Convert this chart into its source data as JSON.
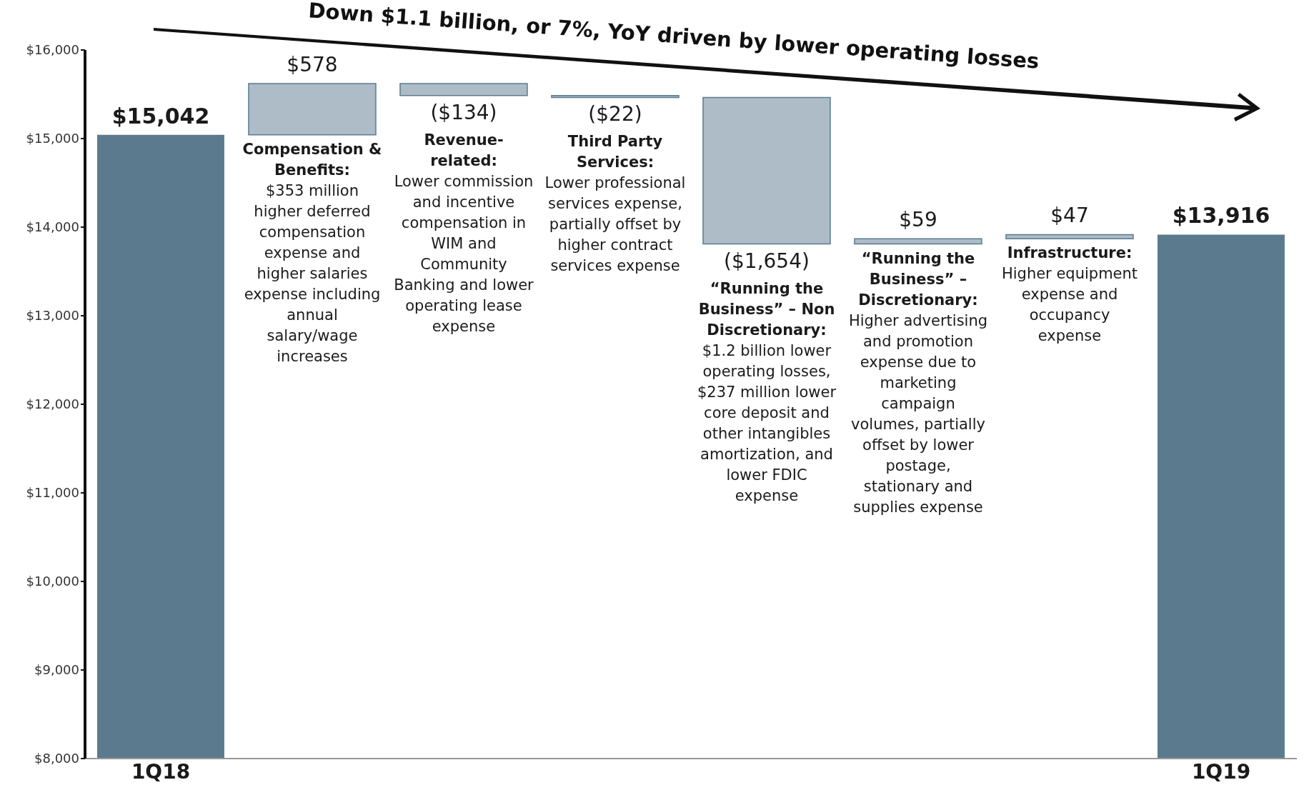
{
  "chart_data": {
    "type": "bar",
    "title": "Down $1.1 billion, or 7%, YoY driven by lower operating losses",
    "categories": [
      "1Q18",
      null,
      null,
      null,
      null,
      null,
      null,
      "1Q19"
    ],
    "values": [
      15042,
      578,
      -134,
      -22,
      -1654,
      59,
      47,
      13916
    ],
    "base": [
      null,
      15042,
      15620,
      15486,
      15464,
      13810,
      13869,
      null
    ],
    "colors": [
      "#5b7a8e",
      "#adbcc7",
      "#adbcc7",
      "#adbcc7",
      "#adbcc7",
      "#adbcc7",
      "#adbcc7",
      "#5b7a8e"
    ],
    "value_labels": [
      "$15,042",
      "$578",
      "($134)",
      "($22)",
      "($1,654)",
      "$59",
      "$47",
      "$13,916"
    ],
    "ylim": [
      8000,
      16000
    ],
    "yticks": [
      {
        "value": 8000,
        "label": "$8,000"
      },
      {
        "value": 9000,
        "label": "$9,000"
      },
      {
        "value": 10000,
        "label": "$10,000"
      },
      {
        "value": 11000,
        "label": "$11,000"
      },
      {
        "value": 12000,
        "label": "$12,000"
      },
      {
        "value": 13000,
        "label": "$13,000"
      },
      {
        "value": 14000,
        "label": "$14,000"
      },
      {
        "value": 15000,
        "label": "$15,000"
      },
      {
        "value": 16000,
        "label": "$16,000"
      }
    ],
    "grid": false,
    "annotations": [
      "Compensation & Benefits: $353 million higher deferred compensation expense and higher salaries expense including annual salary/wage increases",
      "Revenue-related: Lower commission and incentive compensation in WIM and Community Banking and lower operating lease expense",
      "Third Party Services: Lower professional services expense, partially offset by higher contract services expense",
      "“Running the Business” – Non Discretionary: $1.2 billion lower operating losses, $237 million lower core deposit and other intangibles amortization, and lower FDIC expense",
      "“Running the Business” – Discretionary: Higher advertising and promotion expense due to marketing campaign volumes, partially offset by lower postage, stationary and supplies expense",
      "Infrastructure: Higher equipment expense and occupancy expense"
    ]
  }
}
